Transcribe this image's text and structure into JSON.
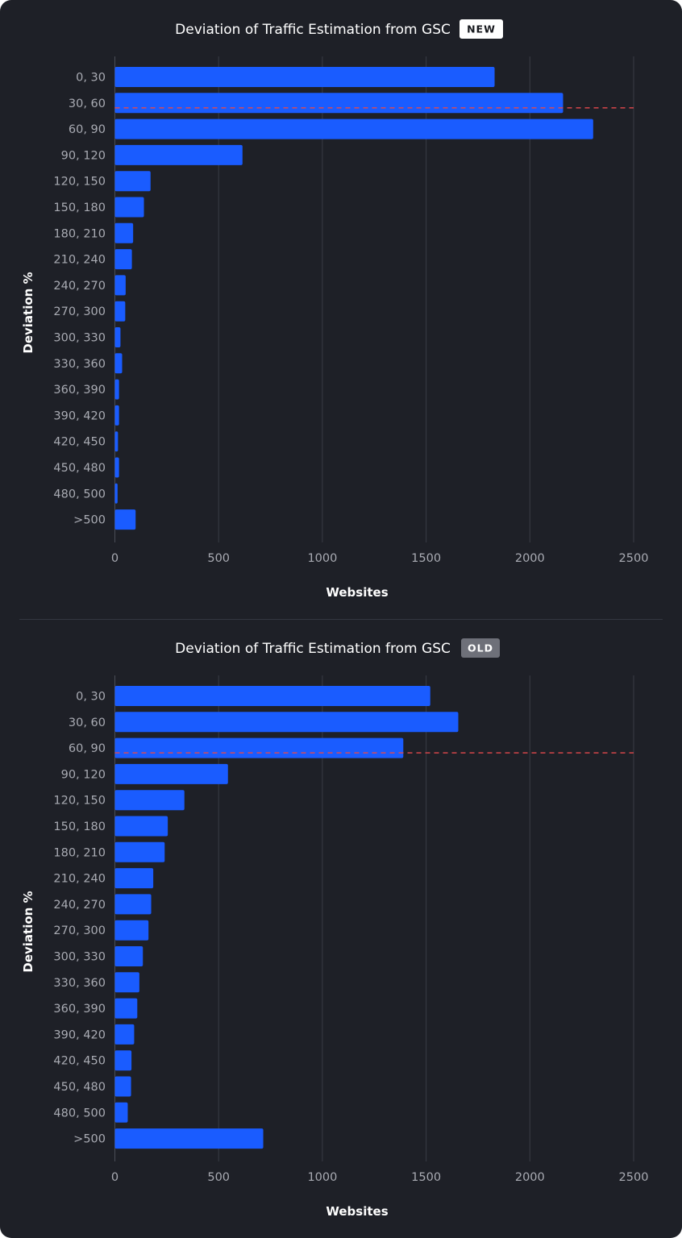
{
  "chart_data": [
    {
      "type": "bar",
      "orientation": "horizontal",
      "title": "Deviation of Traffic Estimation from GSC",
      "badge": "NEW",
      "xlabel": "Websites",
      "ylabel": "Deviation %",
      "xlim": [
        0,
        2500
      ],
      "xticks": [
        0,
        500,
        1000,
        1500,
        2000,
        2500
      ],
      "grid": true,
      "reference_line_category": "30, 60",
      "categories": [
        "0, 30",
        "30, 60",
        "60, 90",
        "90, 120",
        "120, 150",
        "150, 180",
        "180, 210",
        "210, 240",
        "240, 270",
        "270, 300",
        "300, 330",
        "330, 360",
        "360, 390",
        "390, 420",
        "420, 450",
        "450, 480",
        "480, 500",
        ">500"
      ],
      "values": [
        1830,
        2160,
        2305,
        615,
        172,
        140,
        88,
        82,
        52,
        50,
        27,
        35,
        20,
        20,
        15,
        20,
        13,
        100
      ],
      "colors": {
        "bar": "#1a5cff",
        "reference_line": "#e5484d",
        "badge_bg": "#ffffff",
        "badge_text": "#15171c"
      }
    },
    {
      "type": "bar",
      "orientation": "horizontal",
      "title": "Deviation of Traffic Estimation from GSC",
      "badge": "OLD",
      "xlabel": "Websites",
      "ylabel": "Deviation %",
      "xlim": [
        0,
        2500
      ],
      "xticks": [
        0,
        500,
        1000,
        1500,
        2000,
        2500
      ],
      "grid": true,
      "reference_line_category": "60, 90",
      "categories": [
        "0, 30",
        "30, 60",
        "60, 90",
        "90, 120",
        "120, 150",
        "150, 180",
        "180, 210",
        "210, 240",
        "240, 270",
        "270, 300",
        "300, 330",
        "330, 360",
        "360, 390",
        "390, 420",
        "420, 450",
        "450, 480",
        "480, 500",
        ">500"
      ],
      "values": [
        1520,
        1655,
        1390,
        545,
        335,
        255,
        240,
        185,
        175,
        162,
        135,
        118,
        108,
        93,
        80,
        78,
        62,
        715
      ],
      "colors": {
        "bar": "#1a5cff",
        "reference_line": "#e5484d",
        "badge_bg": "#6e7079",
        "badge_text": "#ffffff"
      }
    }
  ]
}
